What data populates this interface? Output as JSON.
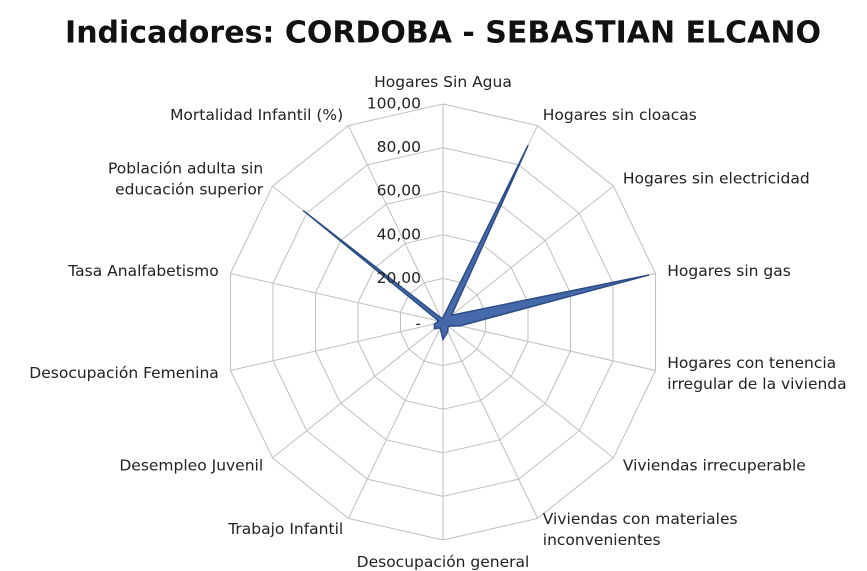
{
  "chart_data": {
    "type": "radar",
    "title": "Indicadores: CORDOBA - SEBASTIAN ELCANO",
    "categories": [
      "Hogares Sin Agua",
      "Hogares sin cloacas",
      "Hogares sin electricidad",
      "Hogares sin gas",
      "Hogares con tenencia\nirregular de la vivienda",
      "Viviendas irrecuperable",
      "Viviendas con materiales\ninconvenientes",
      "Desocupación general",
      "Trabajo Infantil",
      "Desempleo Juvenil",
      "Desocupación Femenina",
      "Tasa Analfabetismo",
      "Población adulta  sin\neducación superior",
      "Mortalidad Infantil (%)"
    ],
    "values": [
      2,
      90,
      5,
      97,
      8,
      3,
      5,
      8,
      3,
      5,
      4,
      2,
      82,
      2
    ],
    "color": "#3c62a6",
    "ylim": [
      0,
      100
    ],
    "yticks": [
      {
        "value": 0,
        "label": "-"
      },
      {
        "value": 20,
        "label": "20,00"
      },
      {
        "value": 40,
        "label": "40,00"
      },
      {
        "value": 60,
        "label": "60,00"
      },
      {
        "value": 80,
        "label": "80,00"
      },
      {
        "value": 100,
        "label": "100,00"
      }
    ],
    "grid": true
  }
}
